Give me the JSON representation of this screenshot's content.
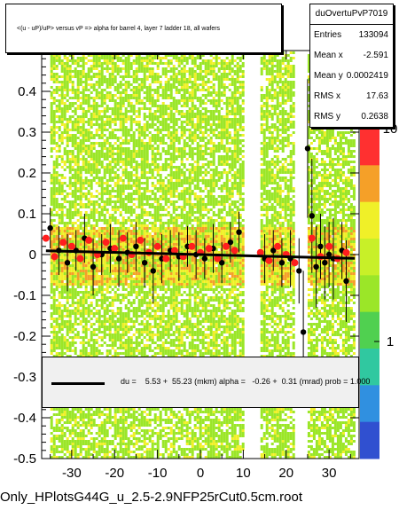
{
  "colors": {
    "frame": "#000000",
    "green": "#9be628",
    "yellow": "#f0f028",
    "orange": "#f5a028",
    "marker_black": "#000000",
    "marker_red": "#ff1e1e",
    "fit_line": "#000000"
  },
  "title": "<(u - uP)/uP> versus   vP => alpha for barrel 4, layer 7 ladder 18, all wafers",
  "stats": {
    "name": "duOvertuPvP7019",
    "rows": [
      {
        "label": "Entries",
        "value": "133094"
      },
      {
        "label": "Mean x",
        "value": "-2.591"
      },
      {
        "label": "Mean y",
        "value": "0.0002419"
      },
      {
        "label": "RMS x",
        "value": "17.63"
      },
      {
        "label": "RMS y",
        "value": "0.2638"
      }
    ]
  },
  "fit_text": "du =    5.53 +  55.23 (mkm) alpha =   -0.26 +  0.31 (mrad) prob = 1.000",
  "footer": "Only_HPlotsG44G_u_2.5-2.9NFP25rCut0.5cm.root",
  "chart_data": {
    "type": "scatter",
    "xlim": [
      -37,
      37
    ],
    "ylim": [
      -0.5,
      0.5
    ],
    "x_ticks": [
      "-30",
      "-20",
      "-10",
      "0",
      "10",
      "20",
      "30"
    ],
    "x_tick_values": [
      -30,
      -20,
      -10,
      0,
      10,
      20,
      30
    ],
    "y_ticks": [
      "-0.5",
      "-0.4",
      "-0.3",
      "-0.2",
      "-0.1",
      "0",
      "0.1",
      "0.2",
      "0.3",
      "0.4"
    ],
    "y_tick_values": [
      -0.5,
      -0.4,
      -0.3,
      -0.2,
      -0.1,
      0,
      0.1,
      0.2,
      0.3,
      0.4
    ],
    "z_ticks": [
      "1",
      "10"
    ],
    "z_tick_values": [
      1,
      10
    ],
    "z_log": true,
    "grid": false,
    "heat_regions_x": [
      [
        -35,
        10
      ],
      [
        14,
        22
      ],
      [
        25,
        36
      ]
    ],
    "series": [
      {
        "marker": "circle-black",
        "points": [
          {
            "x": -35,
            "y": 0.065,
            "err": 0.05
          },
          {
            "x": -33,
            "y": 0.01,
            "err": 0.06
          },
          {
            "x": -31,
            "y": -0.02,
            "err": 0.07
          },
          {
            "x": -29,
            "y": 0.01,
            "err": 0.05
          },
          {
            "x": -27,
            "y": 0.04,
            "err": 0.06
          },
          {
            "x": -25,
            "y": -0.03,
            "err": 0.07
          },
          {
            "x": -23,
            "y": 0.0,
            "err": 0.05
          },
          {
            "x": -21,
            "y": 0.015,
            "err": 0.06
          },
          {
            "x": -19,
            "y": -0.01,
            "err": 0.07
          },
          {
            "x": -17,
            "y": 0.005,
            "err": 0.05
          },
          {
            "x": -15,
            "y": 0.02,
            "err": 0.06
          },
          {
            "x": -13,
            "y": -0.02,
            "err": 0.06
          },
          {
            "x": -11,
            "y": -0.04,
            "err": 0.08
          },
          {
            "x": -9,
            "y": -0.01,
            "err": 0.06
          },
          {
            "x": -7,
            "y": 0.01,
            "err": 0.05
          },
          {
            "x": -5,
            "y": -0.005,
            "err": 0.06
          },
          {
            "x": -3,
            "y": 0.02,
            "err": 0.05
          },
          {
            "x": -1,
            "y": 0.0,
            "err": 0.06
          },
          {
            "x": 1,
            "y": -0.01,
            "err": 0.05
          },
          {
            "x": 3,
            "y": 0.015,
            "err": 0.06
          },
          {
            "x": 5,
            "y": -0.02,
            "err": 0.05
          },
          {
            "x": 7,
            "y": 0.03,
            "err": 0.05
          },
          {
            "x": 9,
            "y": 0.055,
            "err": 0.05
          },
          {
            "x": 15,
            "y": -0.01,
            "err": 0.06
          },
          {
            "x": 17,
            "y": 0.01,
            "err": 0.05
          },
          {
            "x": 19,
            "y": -0.02,
            "err": 0.06
          },
          {
            "x": 21,
            "y": -0.01,
            "err": 0.07
          },
          {
            "x": 23,
            "y": -0.04,
            "err": 0.08
          },
          {
            "x": 24,
            "y": -0.19,
            "err": 0.15
          },
          {
            "x": 25,
            "y": 0.26,
            "err": 0.17
          },
          {
            "x": 26,
            "y": 0.095,
            "err": 0.14
          },
          {
            "x": 27,
            "y": -0.03,
            "err": 0.1
          },
          {
            "x": 28,
            "y": 0.02,
            "err": 0.08
          },
          {
            "x": 29,
            "y": -0.02,
            "err": 0.09
          },
          {
            "x": 30,
            "y": 0.0,
            "err": 0.08
          },
          {
            "x": 31,
            "y": -0.01,
            "err": 0.1
          },
          {
            "x": 33,
            "y": 0.01,
            "err": 0.07
          },
          {
            "x": 34,
            "y": -0.065,
            "err": 0.1
          }
        ]
      },
      {
        "marker": "circle-red",
        "points": [
          {
            "x": -36,
            "y": 0.04
          },
          {
            "x": -34,
            "y": -0.005
          },
          {
            "x": -32,
            "y": 0.03
          },
          {
            "x": -30,
            "y": 0.02
          },
          {
            "x": -28,
            "y": -0.01
          },
          {
            "x": -26,
            "y": 0.035
          },
          {
            "x": -24,
            "y": 0.0
          },
          {
            "x": -22,
            "y": 0.03
          },
          {
            "x": -20,
            "y": 0.015
          },
          {
            "x": -18,
            "y": 0.04
          },
          {
            "x": -16,
            "y": 0.0
          },
          {
            "x": -14,
            "y": 0.035
          },
          {
            "x": -12,
            "y": 0.005
          },
          {
            "x": -10,
            "y": 0.02
          },
          {
            "x": -8,
            "y": -0.01
          },
          {
            "x": -6,
            "y": 0.01
          },
          {
            "x": -4,
            "y": -0.005
          },
          {
            "x": -2,
            "y": 0.02
          },
          {
            "x": 0,
            "y": 0.005
          },
          {
            "x": 2,
            "y": 0.015
          },
          {
            "x": 4,
            "y": -0.01
          },
          {
            "x": 6,
            "y": 0.02
          },
          {
            "x": 8,
            "y": 0.01
          },
          {
            "x": 14,
            "y": 0.005
          },
          {
            "x": 16,
            "y": -0.015
          },
          {
            "x": 18,
            "y": 0.02
          },
          {
            "x": 20,
            "y": 0.0
          },
          {
            "x": 22,
            "y": -0.02
          },
          {
            "x": 26,
            "y": 0.04
          },
          {
            "x": 28,
            "y": -0.005
          },
          {
            "x": 30,
            "y": 0.02
          },
          {
            "x": 32,
            "y": -0.01
          },
          {
            "x": 34,
            "y": 0.005
          }
        ]
      }
    ],
    "fit": {
      "intercept": 0.0,
      "slope": -0.00026,
      "x_range": [
        -36,
        36
      ]
    }
  }
}
